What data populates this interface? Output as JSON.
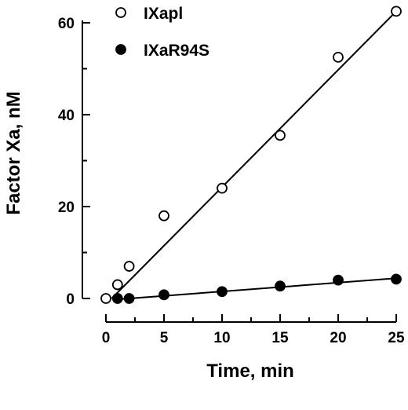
{
  "chart_data": {
    "type": "scatter",
    "title": "",
    "xlabel": "Time, min",
    "ylabel": "Factor Xa, nM",
    "xlim": [
      0,
      25
    ],
    "ylim": [
      0,
      60
    ],
    "xticks": [
      0,
      5,
      10,
      15,
      20,
      25
    ],
    "yticks": [
      0,
      20,
      40,
      60
    ],
    "grid": false,
    "legend_position": "top-left",
    "series": [
      {
        "name": "IXapl",
        "marker": "open-circle",
        "color": "#000000",
        "points": [
          {
            "x": 0,
            "y": 0
          },
          {
            "x": 1,
            "y": 3
          },
          {
            "x": 2,
            "y": 7
          },
          {
            "x": 5,
            "y": 18
          },
          {
            "x": 10,
            "y": 24
          },
          {
            "x": 15,
            "y": 35.5
          },
          {
            "x": 20,
            "y": 52.5
          },
          {
            "x": 25,
            "y": 62.5
          }
        ],
        "fit": {
          "x": [
            0.5,
            25
          ],
          "y": [
            0,
            62.5
          ]
        }
      },
      {
        "name": "IXaR94S",
        "marker": "filled-circle",
        "color": "#000000",
        "points": [
          {
            "x": 1,
            "y": 0
          },
          {
            "x": 2,
            "y": 0
          },
          {
            "x": 5,
            "y": 0.8
          },
          {
            "x": 10,
            "y": 1.5
          },
          {
            "x": 15,
            "y": 2.7
          },
          {
            "x": 20,
            "y": 4
          },
          {
            "x": 25,
            "y": 4.2
          }
        ],
        "fit": {
          "x": [
            1,
            25
          ],
          "y": [
            -0.2,
            4.4
          ]
        }
      }
    ]
  }
}
